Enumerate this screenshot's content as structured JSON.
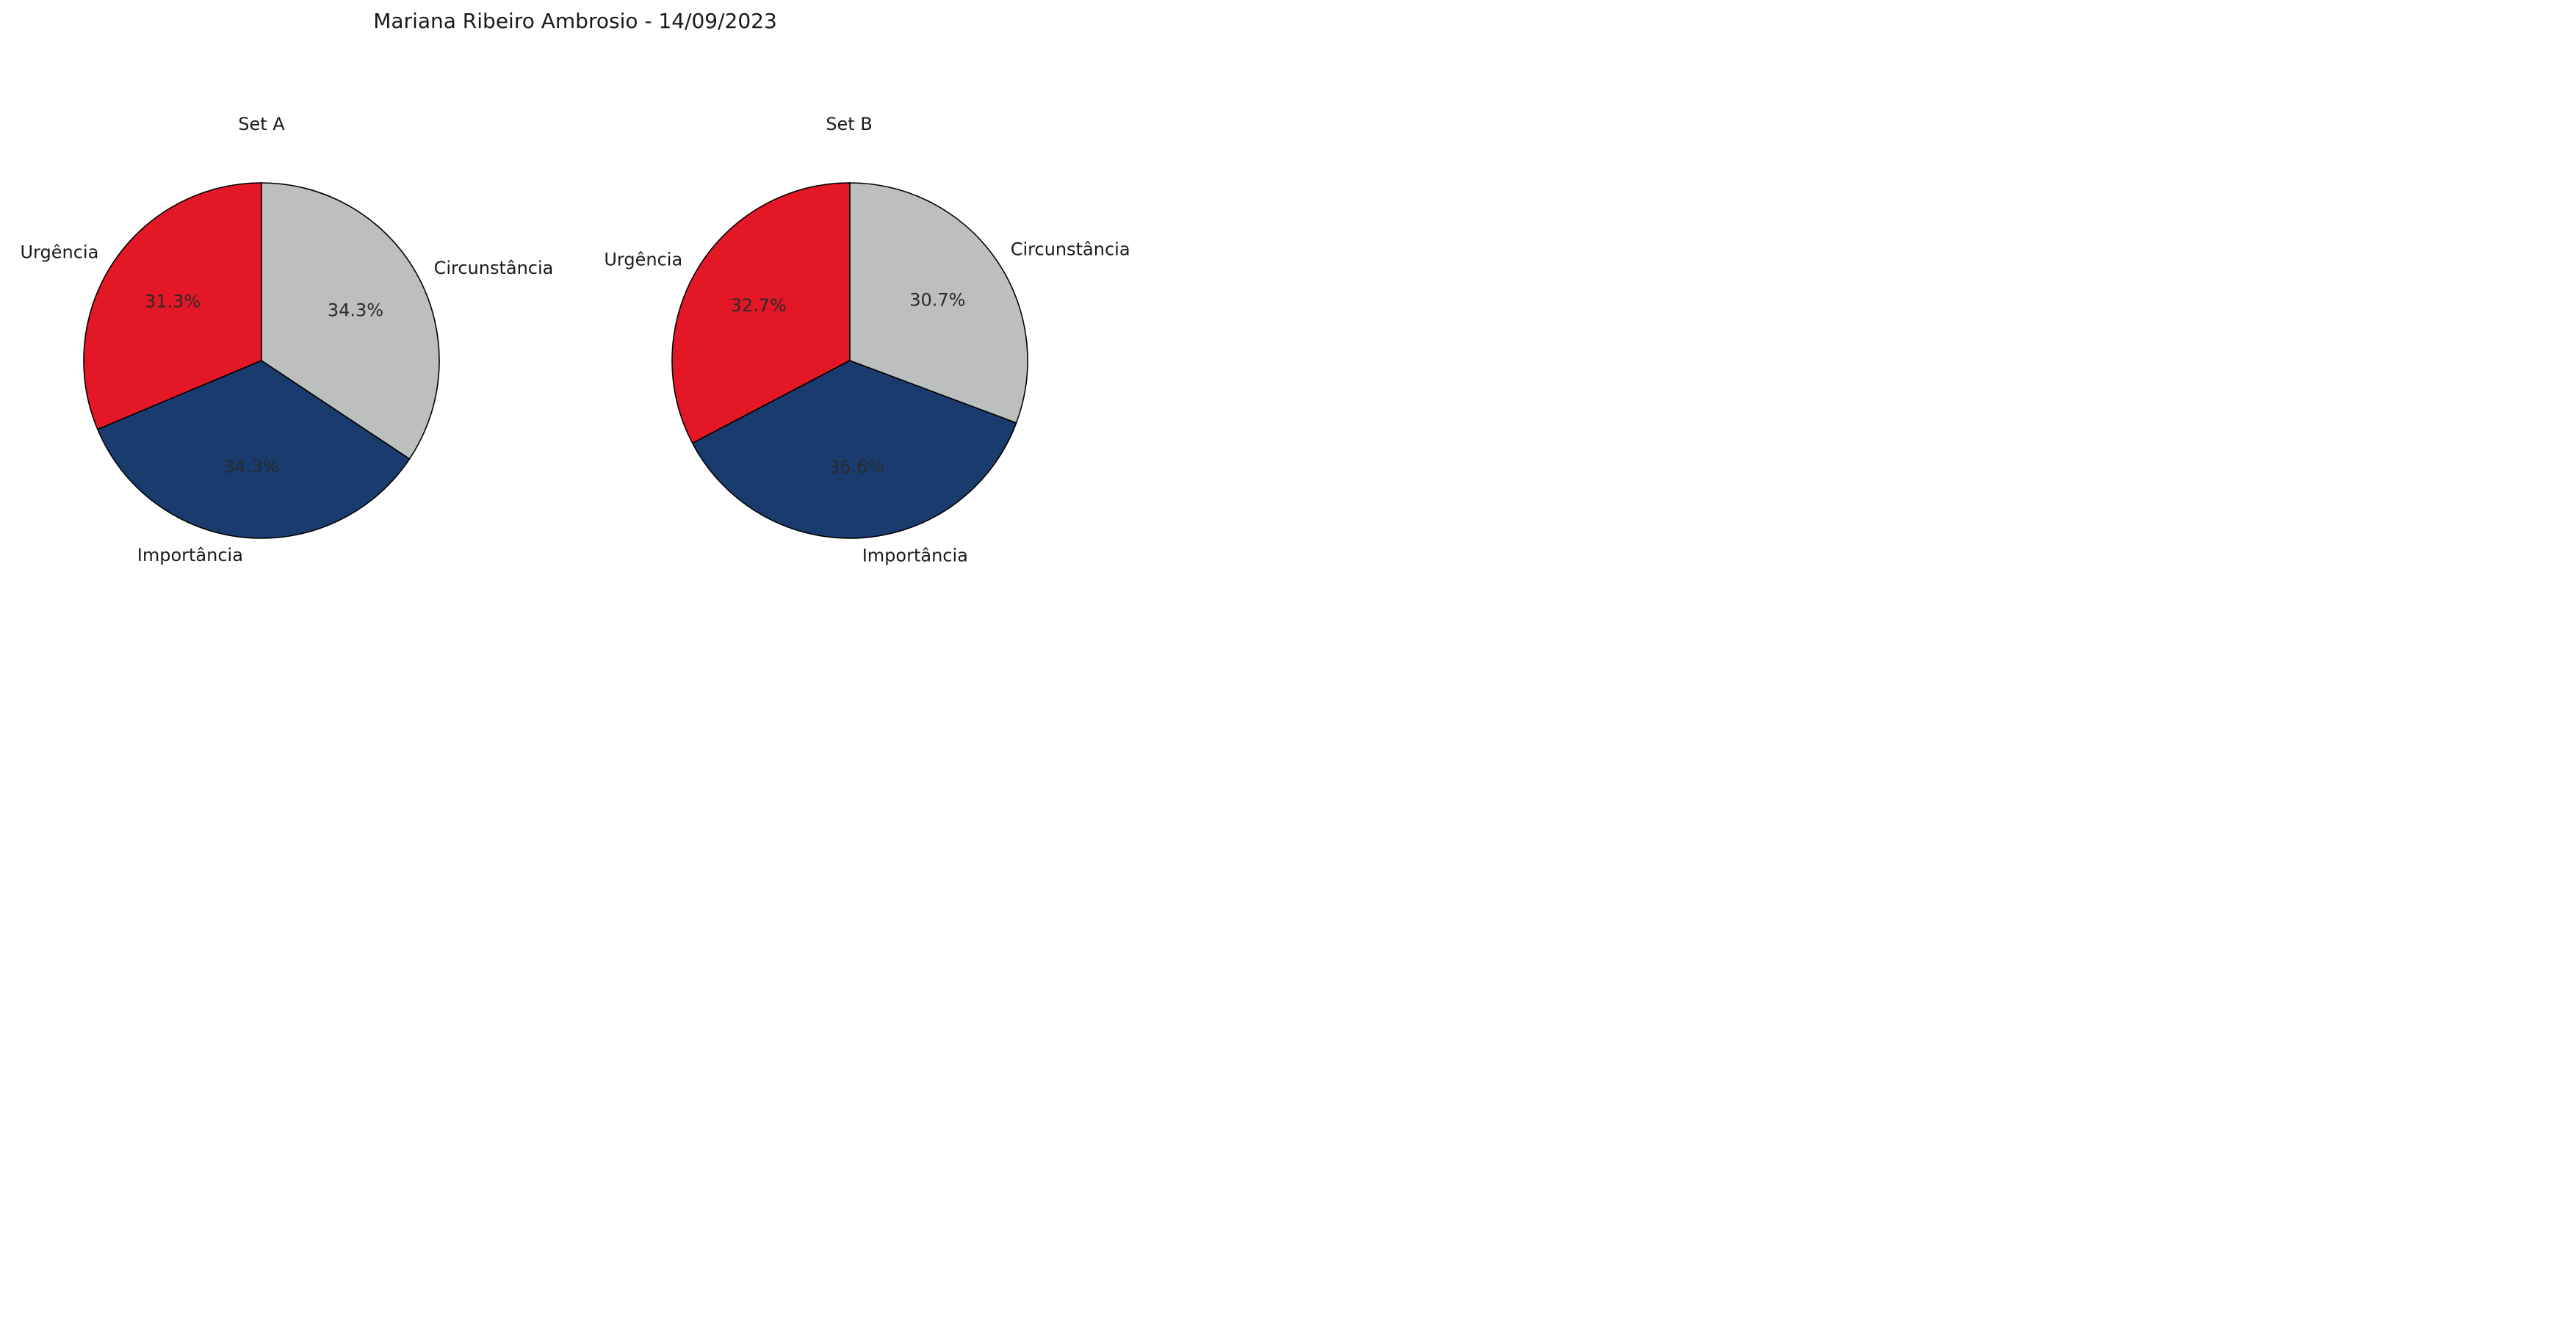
{
  "title": "Mariana Ribeiro Ambrosio - 14/09/2023",
  "colors": {
    "Urgência": "#e31725",
    "Importância": "#193b6e",
    "Circunstância": "#bdbfbf"
  },
  "chart_data": [
    {
      "type": "pie",
      "title": "Set A",
      "start_angle_deg": 90,
      "direction": "counterclockwise",
      "slices": [
        {
          "label": "Urgência",
          "value": 31.3,
          "pct_label": "31.3%"
        },
        {
          "label": "Importância",
          "value": 34.3,
          "pct_label": "34.3%"
        },
        {
          "label": "Circunstância",
          "value": 34.3,
          "pct_label": "34.3%"
        }
      ]
    },
    {
      "type": "pie",
      "title": "Set B",
      "start_angle_deg": 90,
      "direction": "counterclockwise",
      "slices": [
        {
          "label": "Urgência",
          "value": 32.7,
          "pct_label": "32.7%"
        },
        {
          "label": "Importância",
          "value": 36.6,
          "pct_label": "36.6%"
        },
        {
          "label": "Circunstância",
          "value": 30.7,
          "pct_label": "30.7%"
        }
      ]
    }
  ]
}
